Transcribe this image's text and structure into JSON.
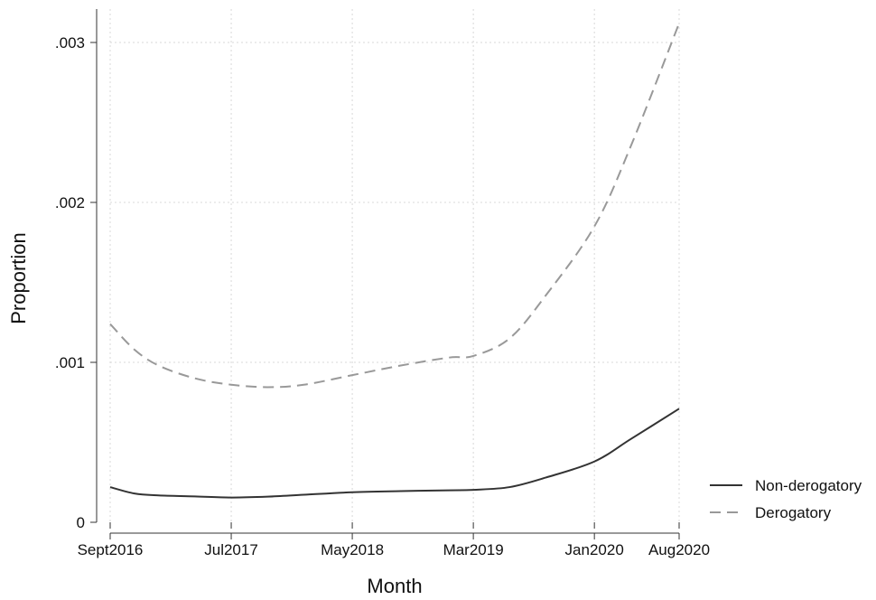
{
  "chart_data": {
    "type": "line",
    "title": "",
    "xlabel": "Month",
    "ylabel": "Proportion",
    "ylim": [
      0,
      0.003
    ],
    "yticks": [
      0,
      0.001,
      0.002,
      0.003
    ],
    "ytick_labels": [
      "0",
      ".001",
      ".002",
      ".003"
    ],
    "xticks": [
      "2016-09",
      "2017-07",
      "2018-05",
      "2019-03",
      "2020-01",
      "2020-08"
    ],
    "xtick_labels": [
      "Sept2016",
      "Jul2017",
      "May2018",
      "Mar2019",
      "Jan2020",
      "Aug2020"
    ],
    "xlim": [
      "2016-09",
      "2020-08"
    ],
    "grid": true,
    "legend_position": "right",
    "series": [
      {
        "name": "Non-derogatory",
        "style": "solid",
        "color": "#333333",
        "x": [
          "2016-09",
          "2016-11",
          "2017-01",
          "2017-04",
          "2017-07",
          "2017-10",
          "2018-01",
          "2018-05",
          "2018-09",
          "2019-01",
          "2019-03",
          "2019-06",
          "2019-09",
          "2020-01",
          "2020-04",
          "2020-08"
        ],
        "y": [
          0.00022,
          0.00018,
          0.000168,
          0.000162,
          0.000155,
          0.00016,
          0.000172,
          0.000188,
          0.000195,
          0.0002,
          0.000203,
          0.00022,
          0.00028,
          0.00038,
          0.00052,
          0.00071
        ]
      },
      {
        "name": "Derogatory",
        "style": "dashed",
        "color": "#999999",
        "x": [
          "2016-09",
          "2016-11",
          "2017-01",
          "2017-04",
          "2017-07",
          "2017-10",
          "2018-01",
          "2018-05",
          "2018-09",
          "2019-01",
          "2019-03",
          "2019-06",
          "2019-09",
          "2020-01",
          "2020-04",
          "2020-08"
        ],
        "y": [
          0.00124,
          0.00108,
          0.00098,
          0.0009,
          0.00086,
          0.000845,
          0.00086,
          0.00092,
          0.00098,
          0.00103,
          0.00104,
          0.00115,
          0.00142,
          0.00185,
          0.00235,
          0.00312
        ]
      }
    ]
  }
}
